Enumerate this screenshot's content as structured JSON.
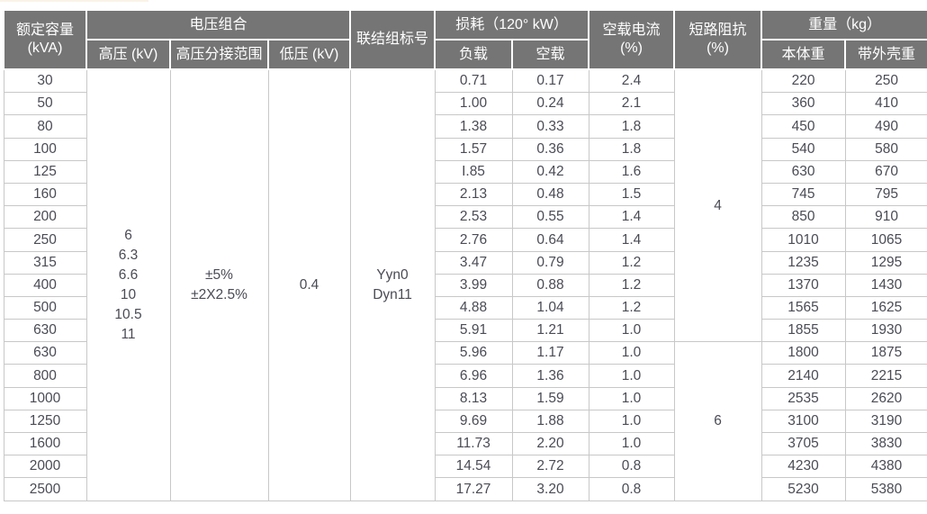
{
  "page": {
    "background": "#ffffff",
    "top_edge_artifact_color": "#faf3e8"
  },
  "table": {
    "colors": {
      "header_bg": "#757575",
      "header_text": "#ffffff",
      "grid_line": "#c8c8c8",
      "cell_text": "#4a4b55"
    },
    "header": {
      "rated_capacity_line1": "额定容量",
      "rated_capacity_line2": "(kVA)",
      "voltage_combo": "电压组合",
      "hv": "高压 (kV)",
      "hv_tap_range": "高压分接范围",
      "lv": "低压 (kV)",
      "vector_group": "联结组标号",
      "loss": "损耗（120° kW）",
      "load_loss": "负载",
      "no_load_loss": "空载",
      "no_load_current_line1": "空载电流",
      "no_load_current_line2": "(%)",
      "impedance_line1": "短路阻抗",
      "impedance_line2": "(%)",
      "weight": "重量（kg）",
      "body_weight": "本体重",
      "shell_weight": "带外壳重"
    },
    "merged_cells": {
      "hv_values": [
        "6",
        "6.3",
        "6.6",
        "10",
        "10.5",
        "11"
      ],
      "hv_tap_range_values": [
        "±5%",
        "±2X2.5%"
      ],
      "lv_value": "0.4",
      "vector_group_values": [
        "Yyn0",
        "Dyn11"
      ],
      "impedance_top_group": {
        "value": "4",
        "row_span": 12
      },
      "impedance_bottom_group": {
        "value": "6",
        "row_span": 7
      }
    },
    "rows": [
      {
        "kva": "30",
        "load_loss": "0.71",
        "no_load_loss": "0.17",
        "no_load_current": "2.4",
        "body_weight": "220",
        "shell_weight": "250"
      },
      {
        "kva": "50",
        "load_loss": "1.00",
        "no_load_loss": "0.24",
        "no_load_current": "2.1",
        "body_weight": "360",
        "shell_weight": "410"
      },
      {
        "kva": "80",
        "load_loss": "1.38",
        "no_load_loss": "0.33",
        "no_load_current": "1.8",
        "body_weight": "450",
        "shell_weight": "490"
      },
      {
        "kva": "100",
        "load_loss": "1.57",
        "no_load_loss": "0.36",
        "no_load_current": "1.8",
        "body_weight": "540",
        "shell_weight": "580"
      },
      {
        "kva": "125",
        "load_loss": "I.85",
        "no_load_loss": "0.42",
        "no_load_current": "1.6",
        "body_weight": "630",
        "shell_weight": "670"
      },
      {
        "kva": "160",
        "load_loss": "2.13",
        "no_load_loss": "0.48",
        "no_load_current": "1.5",
        "body_weight": "745",
        "shell_weight": "795"
      },
      {
        "kva": "200",
        "load_loss": "2.53",
        "no_load_loss": "0.55",
        "no_load_current": "1.4",
        "body_weight": "850",
        "shell_weight": "910"
      },
      {
        "kva": "250",
        "load_loss": "2.76",
        "no_load_loss": "0.64",
        "no_load_current": "1.4",
        "body_weight": "1010",
        "shell_weight": "1065"
      },
      {
        "kva": "315",
        "load_loss": "3.47",
        "no_load_loss": "0.79",
        "no_load_current": "1.2",
        "body_weight": "1235",
        "shell_weight": "1295"
      },
      {
        "kva": "400",
        "load_loss": "3.99",
        "no_load_loss": "0.88",
        "no_load_current": "1.2",
        "body_weight": "1370",
        "shell_weight": "1430"
      },
      {
        "kva": "500",
        "load_loss": "4.88",
        "no_load_loss": "1.04",
        "no_load_current": "1.2",
        "body_weight": "1565",
        "shell_weight": "1625"
      },
      {
        "kva": "630",
        "load_loss": "5.91",
        "no_load_loss": "1.21",
        "no_load_current": "1.0",
        "body_weight": "1855",
        "shell_weight": "1930"
      },
      {
        "kva": "630",
        "load_loss": "5.96",
        "no_load_loss": "1.17",
        "no_load_current": "1.0",
        "body_weight": "1800",
        "shell_weight": "1875"
      },
      {
        "kva": "800",
        "load_loss": "6.96",
        "no_load_loss": "1.36",
        "no_load_current": "1.0",
        "body_weight": "2140",
        "shell_weight": "2215"
      },
      {
        "kva": "1000",
        "load_loss": "8.13",
        "no_load_loss": "1.59",
        "no_load_current": "1.0",
        "body_weight": "2535",
        "shell_weight": "2620"
      },
      {
        "kva": "1250",
        "load_loss": "9.69",
        "no_load_loss": "1.88",
        "no_load_current": "1.0",
        "body_weight": "3100",
        "shell_weight": "3190"
      },
      {
        "kva": "1600",
        "load_loss": "11.73",
        "no_load_loss": "2.20",
        "no_load_current": "1.0",
        "body_weight": "3705",
        "shell_weight": "3830"
      },
      {
        "kva": "2000",
        "load_loss": "14.54",
        "no_load_loss": "2.72",
        "no_load_current": "0.8",
        "body_weight": "4230",
        "shell_weight": "4380"
      },
      {
        "kva": "2500",
        "load_loss": "17.27",
        "no_load_loss": "3.20",
        "no_load_current": "0.8",
        "body_weight": "5230",
        "shell_weight": "5380"
      }
    ]
  }
}
